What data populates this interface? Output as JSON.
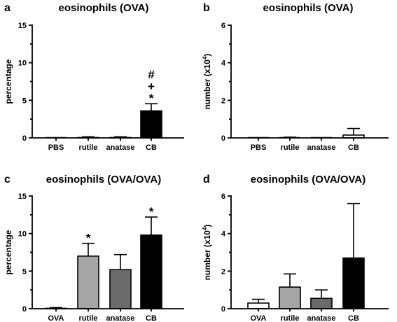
{
  "chart_data": [
    {
      "panel": "a",
      "type": "bar",
      "title": "eosinophils (OVA)",
      "ylabel": "percentage",
      "ylabel_sup": "",
      "ylabel_end": "",
      "categories": [
        "PBS",
        "rutile",
        "anatase",
        "CB"
      ],
      "values": [
        0,
        0.05,
        0.05,
        3.6
      ],
      "errors": [
        0,
        0.1,
        0.1,
        0.95
      ],
      "fills": [
        "#ffffff",
        "#ffffff",
        "#ffffff",
        "#000000"
      ],
      "ylim": [
        0,
        15
      ],
      "yticks": [
        0,
        5,
        10,
        15
      ],
      "annotations": [
        {
          "category": "CB",
          "marks": [
            "#",
            "+",
            "*"
          ]
        }
      ]
    },
    {
      "panel": "b",
      "type": "bar",
      "title": "eosinophils (OVA)",
      "ylabel": "number (x10",
      "ylabel_sup": "4",
      "ylabel_end": ")",
      "categories": [
        "PBS",
        "rutile",
        "anatase",
        "CB"
      ],
      "values": [
        0,
        0.01,
        0,
        0.15
      ],
      "errors": [
        0,
        0.03,
        0,
        0.35
      ],
      "fills": [
        "#ffffff",
        "#ffffff",
        "#ffffff",
        "#ffffff"
      ],
      "ylim": [
        0,
        6
      ],
      "yticks": [
        0,
        2,
        4,
        6
      ],
      "annotations": []
    },
    {
      "panel": "c",
      "type": "bar",
      "title": "eosinophils (OVA/OVA)",
      "ylabel": "percentage",
      "ylabel_sup": "",
      "ylabel_end": "",
      "categories": [
        "OVA",
        "rutile",
        "anatase",
        "CB"
      ],
      "values": [
        0.05,
        7.0,
        5.2,
        9.8
      ],
      "errors": [
        0.1,
        1.7,
        2.0,
        2.4
      ],
      "fills": [
        "#ffffff",
        "#a6a6a6",
        "#6b6b6b",
        "#000000"
      ],
      "ylim": [
        0,
        15
      ],
      "yticks": [
        0,
        5,
        10,
        15
      ],
      "annotations": [
        {
          "category": "rutile",
          "marks": [
            "*"
          ]
        },
        {
          "category": "CB",
          "marks": [
            "*"
          ]
        }
      ]
    },
    {
      "panel": "d",
      "type": "bar",
      "title": "eosinophils (OVA/OVA)",
      "ylabel": "number (x10",
      "ylabel_sup": "4",
      "ylabel_end": ")",
      "categories": [
        "OVA",
        "rutile",
        "anatase",
        "CB"
      ],
      "values": [
        0.3,
        1.15,
        0.55,
        2.7
      ],
      "errors": [
        0.2,
        0.7,
        0.45,
        2.9
      ],
      "fills": [
        "#ffffff",
        "#a6a6a6",
        "#6b6b6b",
        "#000000"
      ],
      "ylim": [
        0,
        6
      ],
      "yticks": [
        0,
        2,
        4,
        6
      ],
      "annotations": []
    }
  ]
}
